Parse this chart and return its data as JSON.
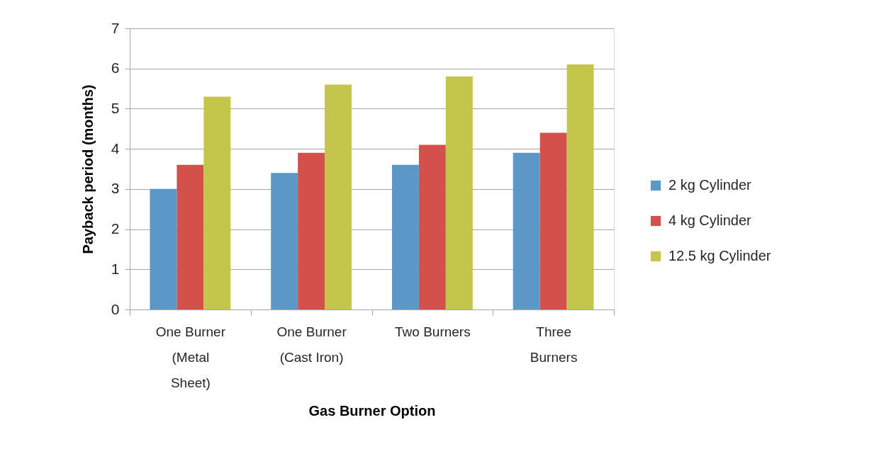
{
  "chart_data": {
    "type": "bar",
    "xlabel": "Gas Burner Option",
    "ylabel": "Payback period (months)",
    "categories": [
      "One Burner (Metal Sheet)",
      "One Burner (Cast Iron)",
      "Two Burners",
      "Three Burners"
    ],
    "series": [
      {
        "name": "2 kg Cylinder",
        "color": "#5b98c8",
        "values": [
          3.0,
          3.4,
          3.6,
          3.9
        ]
      },
      {
        "name": "4 kg Cylinder",
        "color": "#d4504b",
        "values": [
          3.6,
          3.9,
          4.1,
          4.4
        ]
      },
      {
        "name": "12.5 kg Cylinder",
        "color": "#c3c64a",
        "values": [
          5.3,
          5.6,
          5.8,
          6.1
        ]
      }
    ],
    "ylim": [
      0,
      7
    ],
    "yticks": [
      0,
      1,
      2,
      3,
      4,
      5,
      6,
      7
    ],
    "grid": "y",
    "legend": "right"
  }
}
